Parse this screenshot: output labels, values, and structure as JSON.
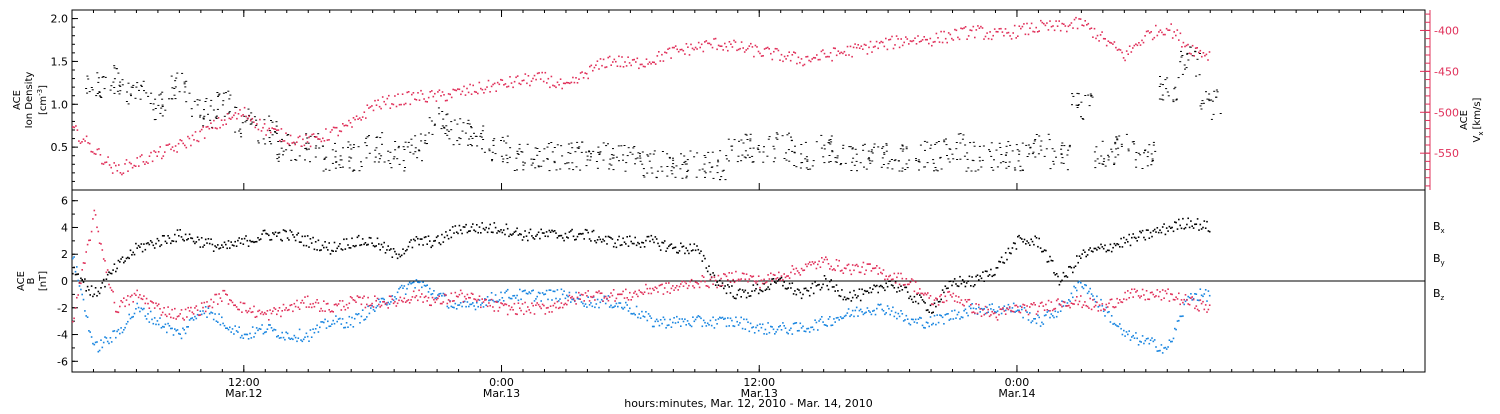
{
  "chart_data": [
    {
      "type": "scatter",
      "panel": "top",
      "ylabel_lines": [
        "ACE",
        "Ion Density"
      ],
      "yunit_base": "[cm",
      "yunit_sup": "-3",
      "yunit_close": "]",
      "ylim": [
        0.0,
        2.1
      ],
      "yticks": [
        0.5,
        1.0,
        1.5,
        2.0
      ],
      "ytick_labels": [
        "0.5",
        "1.0",
        "1.5",
        "2.0"
      ],
      "right_axis": {
        "label_line1": "ACE",
        "label_v": "V",
        "label_sub": "x",
        "label_unit": "[km/s]",
        "ylim": [
          -595,
          -375
        ],
        "yticks": [
          -400,
          -450,
          -500,
          -550
        ],
        "ytick_labels": [
          "-400",
          "-450",
          "-500",
          "-550"
        ],
        "color": "#e0305a"
      },
      "series": [
        {
          "color": "#000000",
          "x_hours": [
            1,
            2,
            3,
            4,
            5,
            6,
            7,
            8,
            9,
            10,
            11,
            12,
            13,
            14,
            15,
            16,
            17,
            18,
            19,
            20,
            21,
            22,
            23,
            24,
            25,
            26,
            27,
            28,
            29,
            30,
            31,
            32,
            33,
            34,
            35,
            36,
            37,
            38,
            39,
            40,
            41,
            42,
            43,
            44,
            45,
            46,
            47,
            48,
            49,
            50,
            51,
            52,
            53
          ],
          "values": [
            1.2,
            1.3,
            1.1,
            1.0,
            1.2,
            0.9,
            1.0,
            0.8,
            0.7,
            0.5,
            0.5,
            0.4,
            0.4,
            0.5,
            0.4,
            0.5,
            0.8,
            0.7,
            0.6,
            0.5,
            0.4,
            0.4,
            0.4,
            0.4,
            0.4,
            0.4,
            0.3,
            0.3,
            0.3,
            0.3,
            0.5,
            0.5,
            0.5,
            0.4,
            0.5,
            0.4,
            0.4,
            0.4,
            0.4,
            0.4,
            0.5,
            0.4,
            0.4,
            0.4,
            0.5,
            0.4,
            1.0,
            0.4,
            0.5,
            0.4,
            1.2,
            1.5,
            1.0
          ]
        },
        {
          "color": "#e0305a",
          "axis": "right",
          "x_hours": [
            0,
            1,
            2,
            3,
            4,
            5,
            6,
            7,
            8,
            9,
            10,
            11,
            12,
            13,
            14,
            15,
            16,
            17,
            18,
            19,
            20,
            21,
            22,
            23,
            24,
            25,
            26,
            27,
            28,
            29,
            30,
            31,
            32,
            33,
            34,
            35,
            36,
            37,
            38,
            39,
            40,
            41,
            42,
            43,
            44,
            45,
            46,
            47,
            48,
            49,
            50,
            51,
            52,
            53
          ],
          "values": [
            -520,
            -545,
            -570,
            -560,
            -550,
            -540,
            -525,
            -510,
            -500,
            -520,
            -530,
            -535,
            -525,
            -515,
            -490,
            -485,
            -480,
            -480,
            -475,
            -470,
            -465,
            -460,
            -458,
            -470,
            -450,
            -435,
            -440,
            -435,
            -425,
            -420,
            -415,
            -420,
            -425,
            -430,
            -435,
            -430,
            -425,
            -420,
            -415,
            -410,
            -410,
            -405,
            -400,
            -405,
            -400,
            -395,
            -395,
            -390,
            -410,
            -430,
            -405,
            -395,
            -420,
            -430
          ]
        }
      ]
    },
    {
      "type": "scatter",
      "panel": "bottom",
      "ylabel_lines": [
        "ACE",
        "B"
      ],
      "yunit": "[nT]",
      "ylim": [
        -6.8,
        6.8
      ],
      "yticks": [
        6,
        4,
        2,
        0,
        -2,
        -4,
        -6
      ],
      "ytick_labels": [
        "6",
        "4",
        "2",
        "0",
        "-2",
        "-4",
        "-6"
      ],
      "series": [
        {
          "name_base": "B",
          "name_sub": "x",
          "color": "#000000",
          "x_hours": [
            0,
            1,
            2,
            3,
            4,
            5,
            6,
            7,
            8,
            9,
            10,
            11,
            12,
            13,
            14,
            15,
            16,
            17,
            18,
            19,
            20,
            21,
            22,
            23,
            24,
            25,
            26,
            27,
            28,
            29,
            30,
            31,
            32,
            33,
            34,
            35,
            36,
            37,
            38,
            39,
            40,
            41,
            42,
            43,
            44,
            45,
            46,
            47,
            48,
            49,
            50,
            51,
            52,
            53
          ],
          "values": [
            1.0,
            -1.0,
            1.0,
            2.5,
            3.0,
            3.5,
            3.0,
            2.5,
            3.0,
            3.5,
            3.5,
            3.0,
            2.5,
            3.0,
            3.0,
            2.0,
            3.0,
            3.0,
            4.0,
            4.0,
            4.0,
            3.5,
            3.5,
            3.5,
            3.5,
            3.0,
            3.0,
            3.0,
            2.5,
            2.5,
            0.0,
            -1.0,
            -0.5,
            0.0,
            -1.0,
            0.0,
            -1.0,
            -1.0,
            0.0,
            -1.0,
            -2.0,
            0.0,
            0.0,
            1.0,
            3.0,
            3.0,
            0.0,
            2.0,
            2.5,
            3.0,
            3.5,
            4.0,
            4.5,
            4.0
          ]
        },
        {
          "name_base": "B",
          "name_sub": "y",
          "color": "#1a86e0",
          "x_hours": [
            0,
            1,
            2,
            3,
            4,
            5,
            6,
            7,
            8,
            9,
            10,
            11,
            12,
            13,
            14,
            15,
            16,
            17,
            18,
            19,
            20,
            21,
            22,
            23,
            24,
            25,
            26,
            27,
            28,
            29,
            30,
            31,
            32,
            33,
            34,
            35,
            36,
            37,
            38,
            39,
            40,
            41,
            42,
            43,
            44,
            45,
            46,
            47,
            48,
            49,
            50,
            51,
            52,
            53
          ],
          "values": [
            2.0,
            -5.0,
            -4.0,
            -2.0,
            -3.0,
            -4.0,
            -2.0,
            -3.0,
            -4.0,
            -3.5,
            -4.0,
            -4.0,
            -3.0,
            -3.0,
            -2.0,
            -1.0,
            0.0,
            -1.0,
            -2.0,
            -1.5,
            -1.0,
            -1.0,
            -1.0,
            -1.0,
            -1.5,
            -1.5,
            -2.0,
            -3.0,
            -3.0,
            -3.0,
            -3.0,
            -3.0,
            -3.5,
            -3.5,
            -3.5,
            -3.0,
            -2.5,
            -2.0,
            -2.0,
            -3.0,
            -3.0,
            -2.5,
            -2.0,
            -2.0,
            -2.0,
            -3.0,
            -2.0,
            0.0,
            -2.0,
            -4.0,
            -4.5,
            -5.0,
            -1.0,
            -1.0
          ]
        },
        {
          "name_base": "B",
          "name_sub": "z",
          "color": "#e0305a",
          "x_hours": [
            0,
            1,
            2,
            3,
            4,
            5,
            6,
            7,
            8,
            9,
            10,
            11,
            12,
            13,
            14,
            15,
            16,
            17,
            18,
            19,
            20,
            21,
            22,
            23,
            24,
            25,
            26,
            27,
            28,
            29,
            30,
            31,
            32,
            33,
            34,
            35,
            36,
            37,
            38,
            39,
            40,
            41,
            42,
            43,
            44,
            45,
            46,
            47,
            48,
            49,
            50,
            51,
            52,
            53
          ],
          "values": [
            -3.0,
            5.0,
            -2.0,
            -1.0,
            -2.0,
            -2.5,
            -2.0,
            -1.0,
            -2.0,
            -2.5,
            -2.0,
            -1.5,
            -2.0,
            -1.5,
            -1.5,
            -1.5,
            -1.0,
            -1.5,
            -1.0,
            -1.5,
            -2.0,
            -2.0,
            -2.0,
            -1.5,
            -1.0,
            -1.0,
            -1.0,
            -0.5,
            -0.5,
            0.0,
            0.0,
            0.5,
            0.0,
            0.5,
            1.0,
            1.5,
            1.0,
            1.0,
            0.5,
            0.0,
            -1.5,
            -1.0,
            -2.0,
            -2.5,
            -2.0,
            -2.0,
            -1.5,
            -1.5,
            -2.0,
            -1.0,
            -1.0,
            -1.0,
            -1.5,
            -2.0
          ]
        }
      ]
    }
  ],
  "x_axis": {
    "start_label_hour": 0,
    "range_hours": [
      0,
      63
    ],
    "ticks": [
      {
        "hour": 8,
        "time": "12:00",
        "date": "Mar.12"
      },
      {
        "hour": 20,
        "time": "0:00",
        "date": "Mar.13"
      },
      {
        "hour": 32,
        "time": "12:00",
        "date": "Mar.13"
      },
      {
        "hour": 44,
        "time": "0:00",
        "date": "Mar.14"
      }
    ],
    "minor_tick_step_hours": 1,
    "label": "hours:minutes, Mar. 12, 2010 - Mar. 14, 2010"
  }
}
